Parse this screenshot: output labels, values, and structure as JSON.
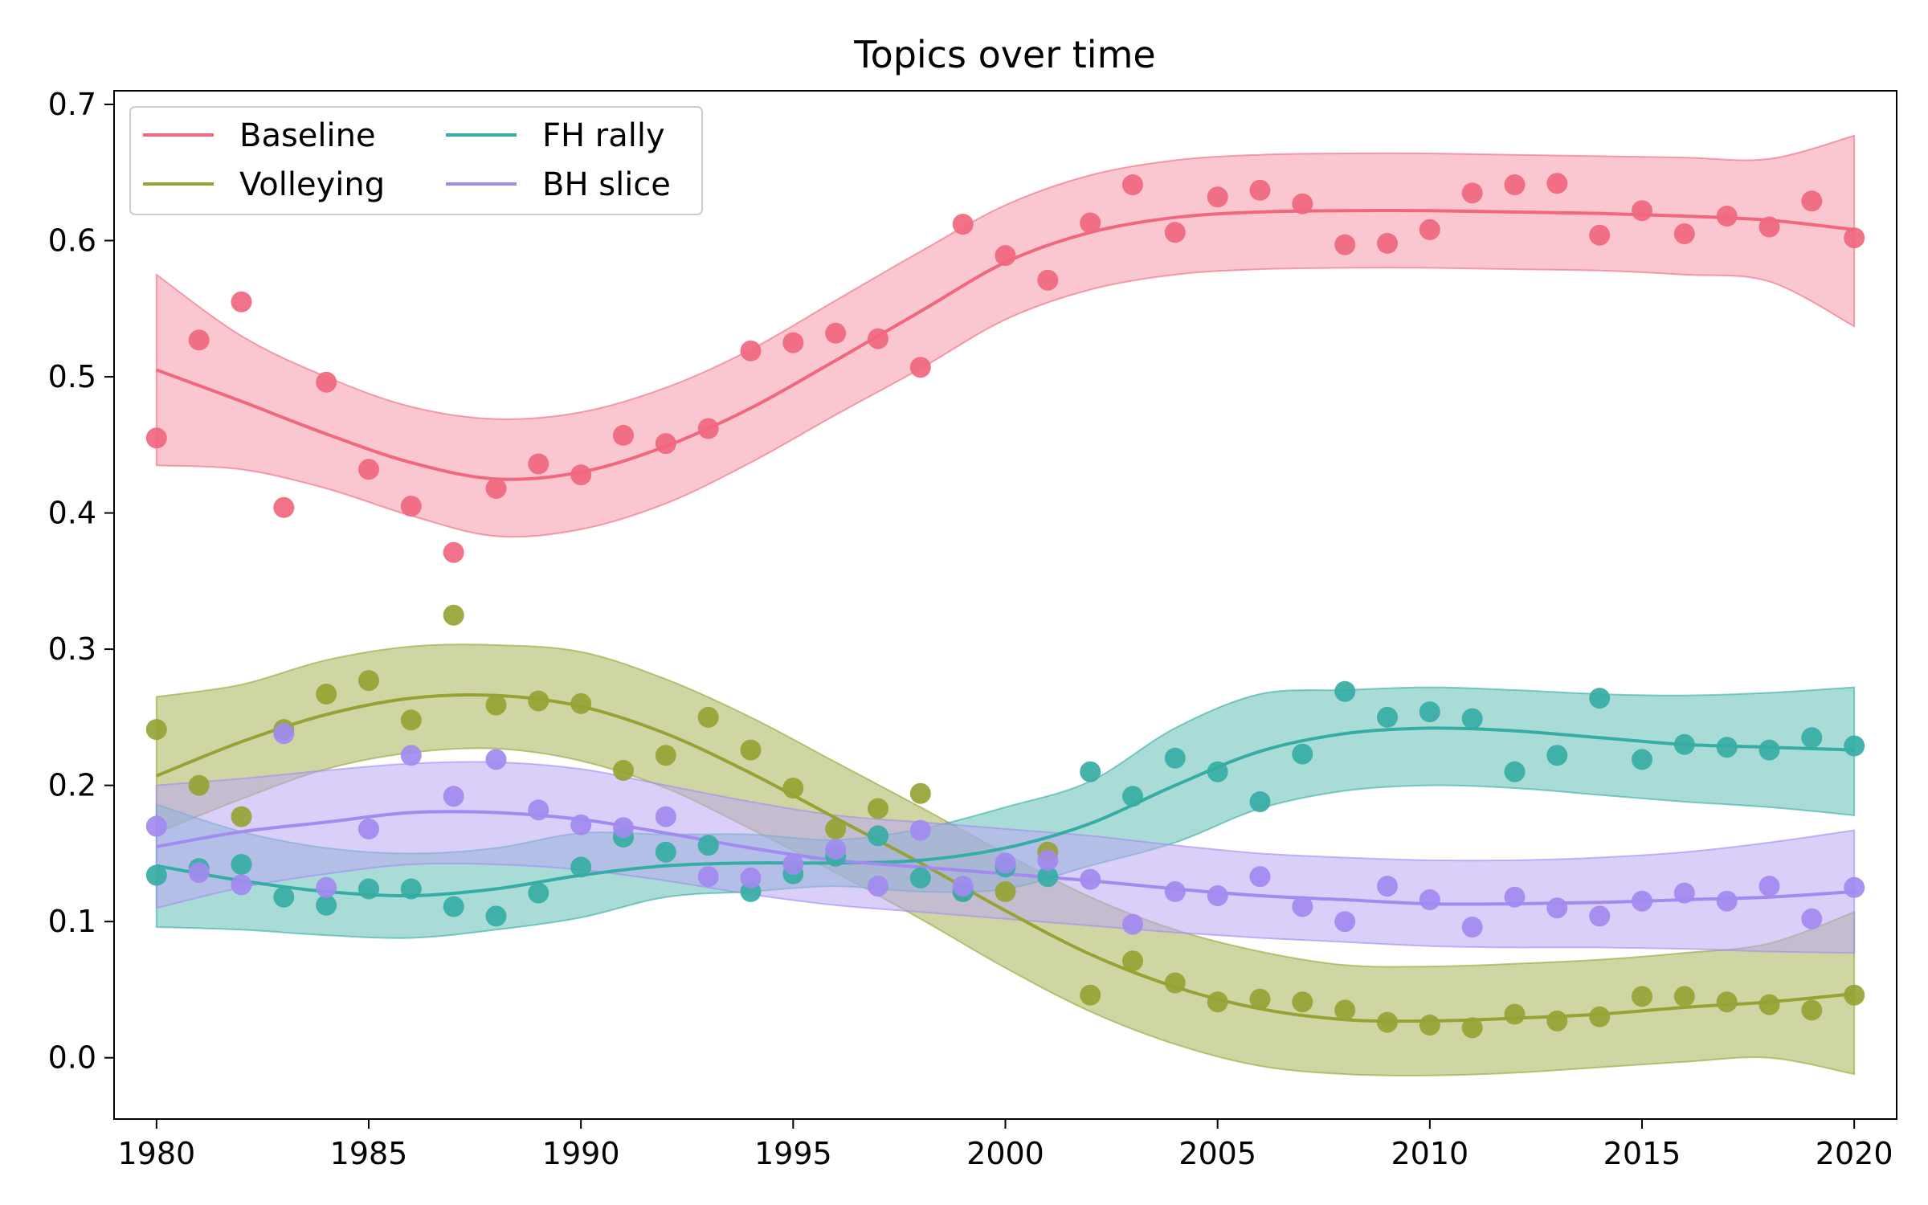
{
  "chart_data": {
    "type": "scatter",
    "title": "Topics over time",
    "xlabel": "",
    "ylabel": "",
    "xlim": [
      1979,
      2021
    ],
    "ylim": [
      -0.045,
      0.71
    ],
    "x_ticks": [
      1980,
      1985,
      1990,
      1995,
      2000,
      2005,
      2010,
      2015,
      2020
    ],
    "y_ticks": [
      0.0,
      0.1,
      0.2,
      0.3,
      0.4,
      0.5,
      0.6,
      0.7
    ],
    "x_tick_labels": [
      "1980",
      "1985",
      "1990",
      "1995",
      "2000",
      "2005",
      "2010",
      "2015",
      "2020"
    ],
    "y_tick_labels": [
      "0.0",
      "0.1",
      "0.2",
      "0.3",
      "0.4",
      "0.5",
      "0.6",
      "0.7"
    ],
    "grid": false,
    "legend": {
      "placement": "top-left",
      "columns": 2
    },
    "x": [
      1980,
      1981,
      1982,
      1983,
      1984,
      1985,
      1986,
      1987,
      1988,
      1989,
      1990,
      1991,
      1992,
      1993,
      1994,
      1995,
      1996,
      1997,
      1998,
      1999,
      2000,
      2001,
      2002,
      2003,
      2004,
      2005,
      2006,
      2007,
      2008,
      2009,
      2010,
      2011,
      2012,
      2013,
      2014,
      2015,
      2016,
      2017,
      2018,
      2019,
      2020
    ],
    "fit_x": [
      1980,
      1982,
      1984,
      1986,
      1988,
      1990,
      1992,
      1994,
      1996,
      1998,
      2000,
      2002,
      2004,
      2006,
      2008,
      2010,
      2012,
      2014,
      2016,
      2018,
      2020
    ],
    "series": [
      {
        "name": "Baseline",
        "color": "#f0677f",
        "band_color": "#f698a8",
        "points": [
          0.455,
          0.527,
          0.555,
          0.404,
          0.496,
          0.432,
          0.405,
          0.371,
          0.418,
          0.436,
          0.428,
          0.457,
          0.451,
          0.462,
          0.519,
          0.525,
          0.532,
          0.528,
          0.507,
          0.612,
          0.589,
          0.571,
          0.613,
          0.641,
          0.606,
          0.632,
          0.637,
          0.627,
          0.597,
          0.598,
          0.608,
          0.635,
          0.641,
          0.642,
          0.604,
          0.622,
          0.605,
          0.618,
          0.61,
          0.629,
          0.602
        ],
        "fit": [
          0.505,
          0.482,
          0.458,
          0.437,
          0.425,
          0.43,
          0.449,
          0.477,
          0.512,
          0.548,
          0.584,
          0.606,
          0.617,
          0.621,
          0.622,
          0.622,
          0.621,
          0.62,
          0.618,
          0.615,
          0.608
        ],
        "lower": [
          0.435,
          0.432,
          0.418,
          0.398,
          0.383,
          0.388,
          0.407,
          0.437,
          0.472,
          0.506,
          0.542,
          0.564,
          0.575,
          0.579,
          0.58,
          0.58,
          0.579,
          0.578,
          0.575,
          0.57,
          0.537
        ],
        "upper": [
          0.575,
          0.53,
          0.5,
          0.478,
          0.469,
          0.474,
          0.492,
          0.52,
          0.556,
          0.592,
          0.626,
          0.648,
          0.659,
          0.663,
          0.664,
          0.664,
          0.663,
          0.662,
          0.661,
          0.66,
          0.677
        ]
      },
      {
        "name": "Volleying",
        "color": "#96a334",
        "band_color": "#a9b558",
        "points": [
          0.241,
          0.2,
          0.177,
          0.241,
          0.267,
          0.277,
          0.248,
          0.325,
          0.259,
          0.262,
          0.26,
          0.211,
          0.222,
          0.25,
          0.226,
          0.198,
          0.168,
          0.183,
          0.194,
          0.122,
          0.122,
          0.151,
          0.046,
          0.071,
          0.055,
          0.041,
          0.043,
          0.041,
          0.035,
          0.026,
          0.024,
          0.022,
          0.032,
          0.027,
          0.03,
          0.045,
          0.045,
          0.041,
          0.039,
          0.035,
          0.046
        ],
        "fit": [
          0.207,
          0.232,
          0.252,
          0.264,
          0.266,
          0.258,
          0.238,
          0.209,
          0.176,
          0.143,
          0.108,
          0.076,
          0.052,
          0.036,
          0.028,
          0.027,
          0.029,
          0.032,
          0.037,
          0.041,
          0.047
        ],
        "lower": [
          0.165,
          0.19,
          0.212,
          0.224,
          0.227,
          0.218,
          0.198,
          0.168,
          0.136,
          0.102,
          0.066,
          0.034,
          0.01,
          -0.006,
          -0.012,
          -0.013,
          -0.011,
          -0.007,
          -0.003,
          0.0,
          -0.012
        ],
        "upper": [
          0.265,
          0.274,
          0.292,
          0.302,
          0.303,
          0.298,
          0.278,
          0.25,
          0.217,
          0.184,
          0.15,
          0.118,
          0.094,
          0.078,
          0.068,
          0.067,
          0.069,
          0.072,
          0.077,
          0.084,
          0.107
        ]
      },
      {
        "name": "FH rally",
        "color": "#36ada4",
        "band_color": "#62c0b7",
        "points": [
          0.134,
          0.139,
          0.142,
          0.118,
          0.112,
          0.124,
          0.124,
          0.111,
          0.104,
          0.121,
          0.14,
          0.162,
          0.151,
          0.156,
          0.122,
          0.135,
          0.148,
          0.163,
          0.132,
          0.122,
          0.14,
          0.133,
          0.21,
          0.192,
          0.22,
          0.21,
          0.188,
          0.223,
          0.269,
          0.25,
          0.254,
          0.249,
          0.21,
          0.222,
          0.264,
          0.219,
          0.23,
          0.228,
          0.226,
          0.235,
          0.229
        ],
        "fit": [
          0.141,
          0.13,
          0.122,
          0.119,
          0.124,
          0.134,
          0.141,
          0.143,
          0.143,
          0.145,
          0.154,
          0.172,
          0.2,
          0.225,
          0.238,
          0.242,
          0.24,
          0.235,
          0.23,
          0.228,
          0.226
        ],
        "lower": [
          0.096,
          0.094,
          0.09,
          0.088,
          0.094,
          0.103,
          0.118,
          0.122,
          0.126,
          0.122,
          0.124,
          0.141,
          0.158,
          0.183,
          0.196,
          0.2,
          0.198,
          0.193,
          0.188,
          0.184,
          0.178
        ],
        "upper": [
          0.186,
          0.166,
          0.154,
          0.15,
          0.154,
          0.165,
          0.164,
          0.164,
          0.16,
          0.168,
          0.184,
          0.203,
          0.242,
          0.267,
          0.27,
          0.272,
          0.27,
          0.267,
          0.266,
          0.268,
          0.272
        ]
      },
      {
        "name": "BH slice",
        "color": "#a28af0",
        "band_color": "#bba8f4",
        "points": [
          0.17,
          0.136,
          0.127,
          0.238,
          0.125,
          0.168,
          0.222,
          0.192,
          0.219,
          0.182,
          0.171,
          0.169,
          0.177,
          0.133,
          0.132,
          0.142,
          0.153,
          0.126,
          0.167,
          0.126,
          0.143,
          0.145,
          0.131,
          0.098,
          0.122,
          0.119,
          0.133,
          0.111,
          0.1,
          0.126,
          0.116,
          0.096,
          0.118,
          0.11,
          0.104,
          0.115,
          0.121,
          0.115,
          0.126,
          0.102,
          0.125
        ],
        "fit": [
          0.155,
          0.166,
          0.173,
          0.18,
          0.18,
          0.175,
          0.165,
          0.154,
          0.145,
          0.14,
          0.135,
          0.13,
          0.124,
          0.119,
          0.116,
          0.113,
          0.113,
          0.114,
          0.116,
          0.118,
          0.122
        ],
        "lower": [
          0.11,
          0.125,
          0.135,
          0.142,
          0.142,
          0.138,
          0.13,
          0.12,
          0.112,
          0.107,
          0.102,
          0.097,
          0.092,
          0.088,
          0.085,
          0.082,
          0.081,
          0.081,
          0.08,
          0.078,
          0.077
        ],
        "upper": [
          0.2,
          0.205,
          0.211,
          0.216,
          0.217,
          0.212,
          0.2,
          0.188,
          0.178,
          0.173,
          0.168,
          0.163,
          0.156,
          0.15,
          0.147,
          0.145,
          0.145,
          0.147,
          0.151,
          0.158,
          0.167
        ]
      }
    ]
  }
}
